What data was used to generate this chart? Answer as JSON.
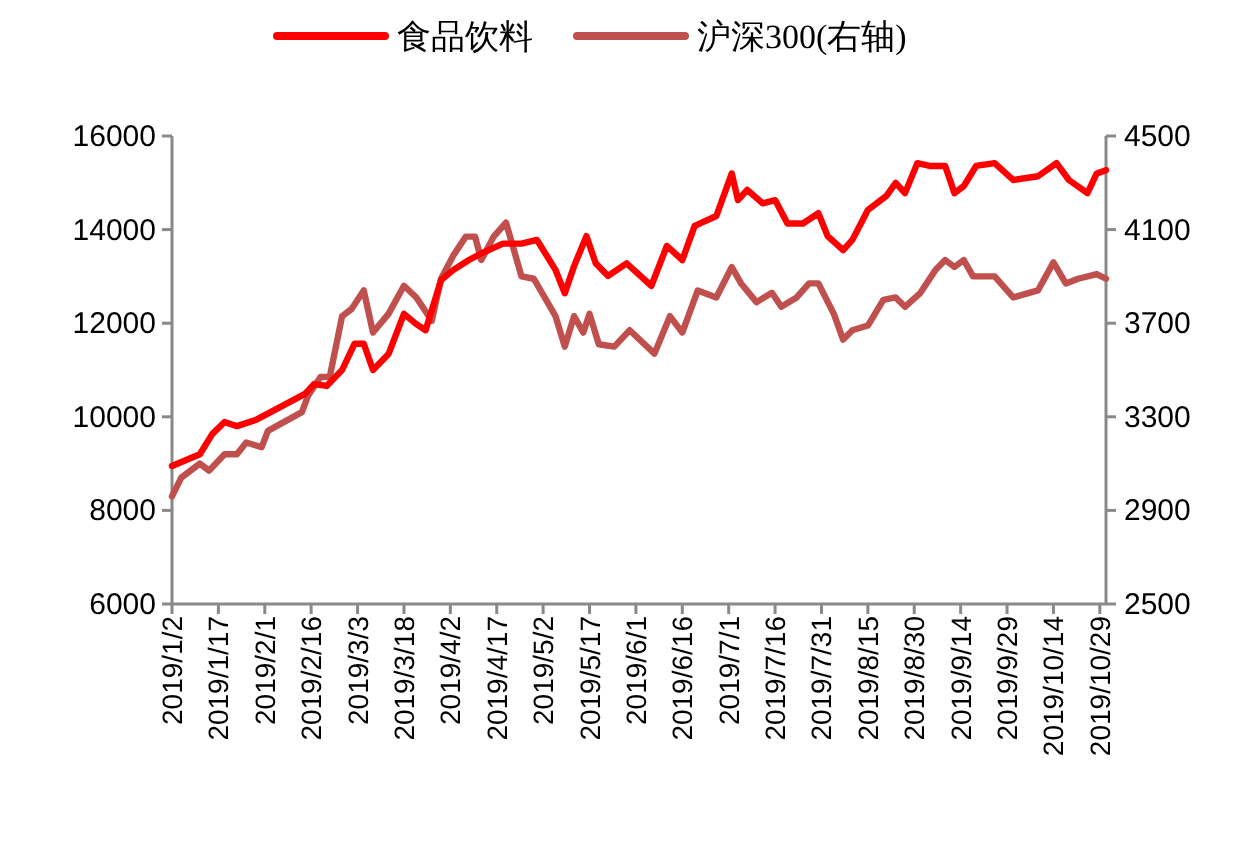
{
  "chart_data": {
    "type": "line",
    "legend": "top",
    "grid": false,
    "marker": "none",
    "line_style": "solid",
    "xlim": [
      "2019-01-02",
      "2019-10-31"
    ],
    "xticks": [
      {
        "value": "2019-01-02",
        "label": "2019/1/2"
      },
      {
        "value": "2019-01-17",
        "label": "2019/1/17"
      },
      {
        "value": "2019-02-01",
        "label": "2019/2/1"
      },
      {
        "value": "2019-02-16",
        "label": "2019/2/16"
      },
      {
        "value": "2019-03-03",
        "label": "2019/3/3"
      },
      {
        "value": "2019-03-18",
        "label": "2019/3/18"
      },
      {
        "value": "2019-04-02",
        "label": "2019/4/2"
      },
      {
        "value": "2019-04-17",
        "label": "2019/4/17"
      },
      {
        "value": "2019-05-02",
        "label": "2019/5/2"
      },
      {
        "value": "2019-05-17",
        "label": "2019/5/17"
      },
      {
        "value": "2019-06-01",
        "label": "2019/6/1"
      },
      {
        "value": "2019-06-16",
        "label": "2019/6/16"
      },
      {
        "value": "2019-07-01",
        "label": "2019/7/1"
      },
      {
        "value": "2019-07-16",
        "label": "2019/7/16"
      },
      {
        "value": "2019-07-31",
        "label": "2019/7/31"
      },
      {
        "value": "2019-08-15",
        "label": "2019/8/15"
      },
      {
        "value": "2019-08-30",
        "label": "2019/8/30"
      },
      {
        "value": "2019-09-14",
        "label": "2019/9/14"
      },
      {
        "value": "2019-09-29",
        "label": "2019/9/29"
      },
      {
        "value": "2019-10-14",
        "label": "2019/10/14"
      },
      {
        "value": "2019-10-29",
        "label": "2019/10/29"
      }
    ],
    "ylim": [
      6000,
      16000
    ],
    "yticks": [
      6000,
      8000,
      10000,
      12000,
      14000,
      16000
    ],
    "y2lim": [
      2500,
      4500
    ],
    "y2ticks": [
      2500,
      2900,
      3300,
      3700,
      4100,
      4500
    ],
    "series": [
      {
        "name": "食品饮料",
        "color": "#ff0000",
        "x": [
          "2019-01-02",
          "2019-01-11",
          "2019-01-15",
          "2019-01-19",
          "2019-01-23",
          "2019-01-29",
          "2019-02-14",
          "2019-02-17",
          "2019-02-21",
          "2019-02-26",
          "2019-03-02",
          "2019-03-05",
          "2019-03-08",
          "2019-03-13",
          "2019-03-18",
          "2019-03-22",
          "2019-03-25",
          "2019-03-30",
          "2019-04-03",
          "2019-04-08",
          "2019-04-12",
          "2019-04-19",
          "2019-04-25",
          "2019-04-30",
          "2019-05-06",
          "2019-05-09",
          "2019-05-12",
          "2019-05-16",
          "2019-05-19",
          "2019-05-23",
          "2019-05-29",
          "2019-06-06",
          "2019-06-11",
          "2019-06-16",
          "2019-06-20",
          "2019-06-27",
          "2019-07-02",
          "2019-07-04",
          "2019-07-07",
          "2019-07-12",
          "2019-07-16",
          "2019-07-20",
          "2019-07-25",
          "2019-07-30",
          "2019-08-02",
          "2019-08-07",
          "2019-08-10",
          "2019-08-15",
          "2019-08-21",
          "2019-08-24",
          "2019-08-27",
          "2019-08-31",
          "2019-09-04",
          "2019-09-09",
          "2019-09-12",
          "2019-09-15",
          "2019-09-19",
          "2019-09-25",
          "2019-10-01",
          "2019-10-09",
          "2019-10-15",
          "2019-10-19",
          "2019-10-25",
          "2019-10-28",
          "2019-10-31"
        ],
        "values": [
          8950,
          9200,
          9630,
          9890,
          9800,
          9930,
          10490,
          10700,
          10660,
          11000,
          11560,
          11560,
          11000,
          11340,
          12200,
          11980,
          11850,
          12920,
          13140,
          13350,
          13490,
          13700,
          13700,
          13780,
          13140,
          12640,
          13220,
          13860,
          13280,
          13010,
          13280,
          12800,
          13650,
          13350,
          14080,
          14290,
          15200,
          14630,
          14850,
          14560,
          14630,
          14130,
          14130,
          14350,
          13860,
          13560,
          13780,
          14420,
          14720,
          15000,
          14780,
          15420,
          15360,
          15360,
          14780,
          14930,
          15360,
          15420,
          15060,
          15140,
          15420,
          15060,
          14780,
          15200,
          15270
        ]
      },
      {
        "name": "沪深300(右轴)",
        "color": "#c0504d",
        "axis": "y2",
        "x": [
          "2019-01-02",
          "2019-01-05",
          "2019-01-11",
          "2019-01-14",
          "2019-01-19",
          "2019-01-23",
          "2019-01-26",
          "2019-01-31",
          "2019-02-02",
          "2019-02-13",
          "2019-02-15",
          "2019-02-19",
          "2019-02-22",
          "2019-02-26",
          "2019-03-01",
          "2019-03-05",
          "2019-03-08",
          "2019-03-13",
          "2019-03-18",
          "2019-03-22",
          "2019-03-27",
          "2019-03-30",
          "2019-04-03",
          "2019-04-07",
          "2019-04-10",
          "2019-04-12",
          "2019-04-16",
          "2019-04-20",
          "2019-04-25",
          "2019-04-29",
          "2019-05-06",
          "2019-05-09",
          "2019-05-12",
          "2019-05-15",
          "2019-05-17",
          "2019-05-20",
          "2019-05-25",
          "2019-05-30",
          "2019-06-07",
          "2019-06-12",
          "2019-06-16",
          "2019-06-21",
          "2019-06-27",
          "2019-07-02",
          "2019-07-05",
          "2019-07-10",
          "2019-07-15",
          "2019-07-18",
          "2019-07-23",
          "2019-07-27",
          "2019-07-30",
          "2019-08-04",
          "2019-08-07",
          "2019-08-10",
          "2019-08-15",
          "2019-08-20",
          "2019-08-24",
          "2019-08-27",
          "2019-09-01",
          "2019-09-06",
          "2019-09-09",
          "2019-09-12",
          "2019-09-15",
          "2019-09-18",
          "2019-09-25",
          "2019-10-01",
          "2019-10-09",
          "2019-10-14",
          "2019-10-18",
          "2019-10-22",
          "2019-10-28",
          "2019-10-31"
        ],
        "values": [
          2960,
          3040,
          3100,
          3070,
          3140,
          3140,
          3190,
          3170,
          3240,
          3320,
          3390,
          3470,
          3470,
          3730,
          3760,
          3840,
          3660,
          3740,
          3860,
          3810,
          3710,
          3890,
          3990,
          4070,
          4070,
          3970,
          4070,
          4130,
          3900,
          3890,
          3730,
          3600,
          3730,
          3660,
          3740,
          3610,
          3600,
          3670,
          3570,
          3730,
          3660,
          3840,
          3810,
          3940,
          3870,
          3790,
          3830,
          3770,
          3810,
          3870,
          3870,
          3740,
          3630,
          3670,
          3690,
          3800,
          3810,
          3770,
          3830,
          3930,
          3970,
          3940,
          3970,
          3900,
          3900,
          3810,
          3840,
          3960,
          3870,
          3890,
          3910,
          3890
        ]
      }
    ]
  }
}
